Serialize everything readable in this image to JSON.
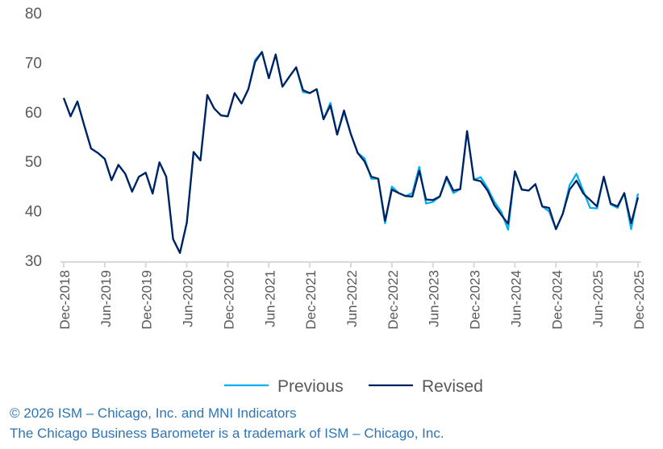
{
  "chart_data": {
    "type": "line",
    "title": "",
    "xlabel": "",
    "ylabel": "",
    "ylim": [
      30,
      80
    ],
    "yticks": [
      "30",
      "40",
      "50",
      "60",
      "70",
      "80"
    ],
    "x_start": "Dec-2018",
    "x_tick_labels": [
      "Dec-2018",
      "Jun-2019",
      "Dec-2019",
      "Jun-2020",
      "Dec-2020",
      "Jun-2021",
      "Dec-2021",
      "Jun-2022",
      "Dec-2022",
      "Jun-2023",
      "Dec-2023",
      "Jun-2024",
      "Dec-2024",
      "Jun-2025",
      "Dec-2025"
    ],
    "legend_position": "bottom",
    "series": [
      {
        "name": "Previous",
        "color": "#00b0f0",
        "values": [
          62.8,
          59.1,
          62.1,
          57.3,
          52.6,
          51.7,
          50.5,
          46.2,
          49.3,
          47.5,
          43.9,
          46.9,
          47.7,
          43.5,
          49.8,
          46.9,
          34.3,
          31.5,
          37.6,
          51.9,
          50.2,
          63.4,
          60.7,
          59.3,
          59.1,
          63.8,
          61.7,
          64.6,
          70.5,
          72.1,
          66.8,
          71.6,
          65.1,
          67.1,
          69.0,
          64.0,
          63.8,
          64.6,
          58.5,
          61.8,
          55.4,
          60.0,
          55.5,
          51.7,
          50.6,
          46.5,
          46.5,
          37.5,
          44.9,
          43.6,
          43.0,
          43.6,
          48.9,
          41.5,
          41.8,
          42.9,
          46.6,
          43.6,
          44.4,
          56.1,
          46.3,
          46.8,
          44.6,
          41.8,
          39.8,
          36.2,
          48.0,
          44.3,
          44.1,
          45.4,
          40.9,
          39.9,
          36.3,
          39.4,
          45.2,
          47.5,
          44.0,
          40.6,
          40.5,
          46.9,
          41.3,
          40.6,
          43.6,
          36.3,
          43.5
        ]
      },
      {
        "name": "Revised",
        "color": "#002060",
        "values": [
          62.8,
          59.1,
          62.1,
          57.3,
          52.6,
          51.7,
          50.5,
          46.2,
          49.3,
          47.5,
          43.9,
          46.9,
          47.7,
          43.5,
          49.8,
          46.9,
          34.3,
          31.5,
          37.6,
          51.9,
          50.2,
          63.4,
          60.7,
          59.3,
          59.1,
          63.8,
          61.7,
          64.6,
          70.1,
          72.1,
          66.8,
          71.6,
          65.1,
          67.1,
          69.0,
          64.4,
          63.8,
          64.6,
          58.5,
          61.3,
          55.4,
          60.3,
          55.5,
          51.7,
          50.0,
          46.9,
          46.5,
          38.0,
          44.3,
          43.6,
          43.0,
          42.9,
          48.1,
          42.3,
          42.2,
          42.9,
          46.9,
          44.1,
          44.4,
          56.1,
          46.3,
          46.0,
          44.1,
          41.1,
          39.2,
          37.4,
          48.0,
          44.3,
          44.1,
          45.4,
          40.9,
          40.6,
          36.3,
          39.4,
          44.3,
          46.1,
          43.5,
          42.2,
          40.9,
          46.9,
          41.5,
          40.9,
          43.6,
          37.5,
          42.7
        ]
      }
    ]
  },
  "footer": {
    "copyright": "© 2026 ISM – Chicago, Inc. and MNI Indicators",
    "trademark": "The Chicago Business Barometer is a trademark of ISM – Chicago, Inc."
  }
}
